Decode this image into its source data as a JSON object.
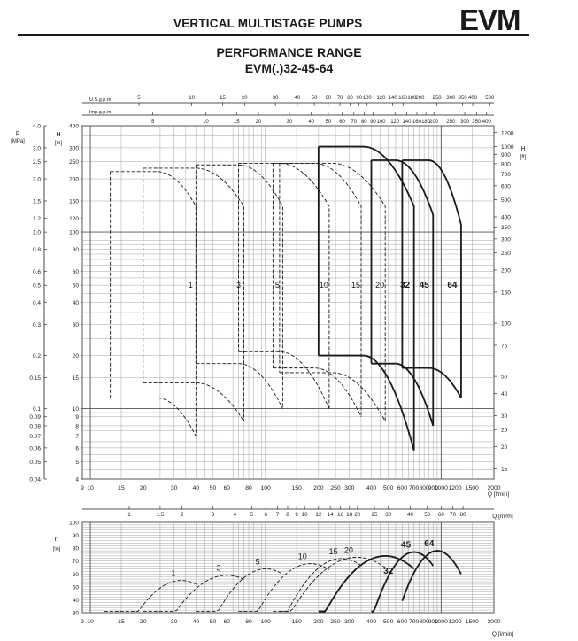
{
  "header": {
    "title": "VERTICAL MULTISTAGE PUMPS",
    "brand": "EVM"
  },
  "chart_title": {
    "line1": "PERFORMANCE RANGE",
    "line2": "EVM(.)32-45-64"
  },
  "colors": {
    "ink": "#1a1a1a",
    "grid": "#9a9a9a",
    "band": "#c8c8c8"
  },
  "chart_data": [
    {
      "type": "line",
      "name": "head-chart",
      "xscale": "log",
      "yscale": "log",
      "xlim": [
        9,
        2000
      ],
      "ylim": [
        4,
        400
      ],
      "xunit": "Q [l/min]",
      "x_ticks": [
        "9",
        "10",
        "15",
        "20",
        "30",
        "40",
        "50",
        "60",
        "80",
        "100",
        "150",
        "200",
        "250",
        "300",
        "400",
        "500",
        "600",
        "700",
        "800",
        "900",
        "1000",
        "1200",
        "1500",
        "2000"
      ],
      "y_left_m_label": "H [m]",
      "y_left_m_ticks": [
        "400",
        "300",
        "250",
        "200",
        "150",
        "120",
        "100",
        "80",
        "60",
        "50",
        "40",
        "30",
        "20",
        "15",
        "10",
        "9",
        "8",
        "7",
        "6",
        "5",
        "4"
      ],
      "y_left_mpa_label": "p [MPa]",
      "y_left_mpa_ticks": [
        "4.0",
        "3.0",
        "2.5",
        "2.0",
        "1.5",
        "1.2",
        "1.0",
        "0.8",
        "0.6",
        "0.5",
        "0.4",
        "0.3",
        "0.2",
        "0.15",
        "0.1",
        "0.09",
        "0.08",
        "0.07",
        "0.06",
        "0.05",
        "0.04"
      ],
      "y_right_ft_label": "H [ft]",
      "y_right_ft_ticks": [
        "1200",
        "1000",
        "900",
        "800",
        "700",
        "600",
        "500",
        "400",
        "350",
        "300",
        "250",
        "200",
        "150",
        "100",
        "75",
        "50",
        "40",
        "30",
        "25",
        "20",
        "15"
      ],
      "top_scale_us_label": "U.S.g.p.m.",
      "top_scale_us_ticks": [
        "5",
        "10",
        "15",
        "20",
        "30",
        "40",
        "50",
        "60",
        "70",
        "80",
        "90",
        "100",
        "120",
        "140",
        "160",
        "180",
        "200",
        "250",
        "300",
        "350",
        "400",
        "500"
      ],
      "top_scale_imp_label": "Imp.g.p.m.",
      "top_scale_imp_ticks": [
        "5",
        "10",
        "15",
        "20",
        "30",
        "40",
        "50",
        "60",
        "70",
        "80",
        "90",
        "100",
        "120",
        "140",
        "160",
        "180",
        "200",
        "250",
        "300",
        "350",
        "400"
      ],
      "series": [
        {
          "name": "1",
          "q_min": 13,
          "q_max": 40,
          "h_top_max": 220,
          "h_top_min": 140,
          "h_bot_max": 11.5,
          "h_bot_min": 7,
          "q_split": 24
        },
        {
          "name": "3",
          "q_min": 20,
          "q_max": 75,
          "h_top_max": 230,
          "h_top_min": 140,
          "h_bot_max": 14,
          "h_bot_min": 8.5,
          "q_split": 40
        },
        {
          "name": "5",
          "q_min": 40,
          "q_max": 125,
          "h_top_max": 240,
          "h_top_min": 140,
          "h_bot_max": 18,
          "h_bot_min": 10,
          "q_split": 70
        },
        {
          "name": "10",
          "q_min": 70,
          "q_max": 230,
          "h_top_max": 245,
          "h_top_min": 140,
          "h_bot_max": 21,
          "h_bot_min": 10,
          "q_split": 120
        },
        {
          "name": "15",
          "q_min": 110,
          "q_max": 350,
          "h_top_max": 245,
          "h_top_min": 140,
          "h_bot_max": 17,
          "h_bot_min": 9,
          "q_split": 190
        },
        {
          "name": "20",
          "q_min": 120,
          "q_max": 480,
          "h_top_max": 245,
          "h_top_min": 140,
          "h_bot_max": 16,
          "h_bot_min": 8.5,
          "q_split": 240
        },
        {
          "name": "32",
          "q_min": 200,
          "q_max": 700,
          "h_top_max": 305,
          "h_top_min": 140,
          "h_bot_max": 20,
          "h_bot_min": 5.8,
          "q_split": 360
        },
        {
          "name": "45",
          "q_min": 400,
          "q_max": 900,
          "h_top_max": 255,
          "h_top_min": 125,
          "h_bot_max": 18,
          "h_bot_min": 8,
          "q_split": 550
        },
        {
          "name": "64",
          "q_min": 600,
          "q_max": 1300,
          "h_top_max": 255,
          "h_top_min": 110,
          "h_bot_max": 17,
          "h_bot_min": 11.5,
          "q_split": 850
        }
      ]
    },
    {
      "type": "line",
      "name": "efficiency-chart",
      "xscale": "log",
      "xlim": [
        9,
        2000
      ],
      "ylim": [
        30,
        100
      ],
      "xunit": "Q [l/min]",
      "x_ticks": [
        "9",
        "10",
        "15",
        "20",
        "30",
        "40",
        "50",
        "60",
        "80",
        "100",
        "150",
        "200",
        "250",
        "300",
        "400",
        "500",
        "600",
        "700",
        "800",
        "900",
        "1000",
        "1200",
        "1500",
        "2000"
      ],
      "top_unit": "Q [m³/h]",
      "top_ticks": [
        "1",
        "1.5",
        "2",
        "3",
        "4",
        "5",
        "6",
        "7",
        "8",
        "9",
        "10",
        "12",
        "14",
        "16",
        "18",
        "20",
        "25",
        "30",
        "40",
        "50",
        "60",
        "70",
        "80"
      ],
      "ylabel": "η [%]",
      "y_ticks": [
        "100",
        "90",
        "80",
        "70",
        "60",
        "50",
        "40",
        "30"
      ],
      "series": [
        {
          "name": "1",
          "q_min": 12,
          "q_max": 40,
          "eta_max": 55,
          "q_best": 33
        },
        {
          "name": "3",
          "q_min": 20,
          "q_max": 75,
          "eta_max": 59,
          "q_best": 60
        },
        {
          "name": "5",
          "q_min": 40,
          "q_max": 125,
          "eta_max": 64,
          "q_best": 100
        },
        {
          "name": "10",
          "q_min": 70,
          "q_max": 230,
          "eta_max": 68,
          "q_best": 180
        },
        {
          "name": "15",
          "q_min": 110,
          "q_max": 350,
          "eta_max": 72,
          "q_best": 270
        },
        {
          "name": "20",
          "q_min": 120,
          "q_max": 480,
          "eta_max": 73,
          "q_best": 330
        },
        {
          "name": "32",
          "q_min": 200,
          "q_max": 700,
          "eta_max": 74,
          "q_best": 480
        },
        {
          "name": "45",
          "q_min": 400,
          "q_max": 900,
          "eta_max": 77,
          "q_best": 700
        },
        {
          "name": "64",
          "q_min": 600,
          "q_max": 1300,
          "eta_max": 78,
          "q_best": 950
        }
      ]
    }
  ]
}
